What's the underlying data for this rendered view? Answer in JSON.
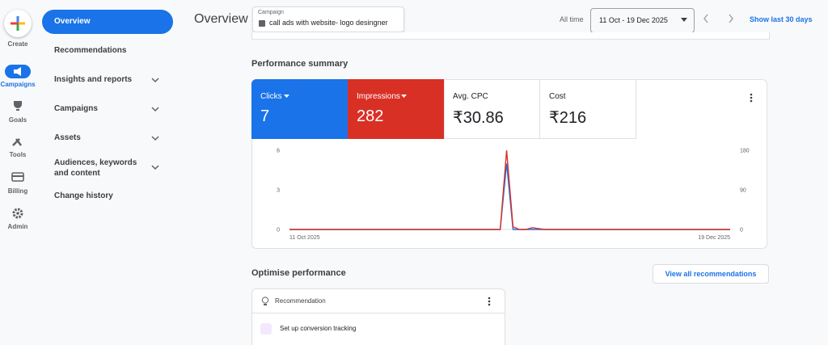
{
  "rail": {
    "create": "Create",
    "items": [
      "Campaigns",
      "Goals",
      "Tools",
      "Billing",
      "Admin"
    ]
  },
  "nav": {
    "items": [
      "Overview",
      "Recommendations",
      "Insights and reports",
      "Campaigns",
      "Assets",
      "Audiences, keywords and content",
      "Change history"
    ]
  },
  "header": {
    "title": "Overview",
    "campaign_label": "Campaign",
    "campaign_name": "call ads with website- logo desingner",
    "range_label": "All time",
    "date_range": "11 Oct - 19 Dec 2025",
    "show_last": "Show last 30 days"
  },
  "performance": {
    "title": "Performance summary",
    "tiles": [
      {
        "label": "Clicks",
        "value": "7"
      },
      {
        "label": "Impressions",
        "value": "282"
      },
      {
        "label": "Avg. CPC",
        "value": "₹30.86"
      },
      {
        "label": "Cost",
        "value": "₹216"
      }
    ]
  },
  "chart_data": {
    "type": "line",
    "categories": [
      "11 Oct 2025",
      null,
      null,
      null,
      null,
      null,
      null,
      null,
      null,
      null,
      null,
      null,
      null,
      null,
      null,
      null,
      null,
      null,
      null,
      null,
      null,
      null,
      null,
      null,
      null,
      null,
      null,
      null,
      null,
      null,
      null,
      null,
      null,
      null,
      null,
      null,
      null,
      null,
      null,
      null,
      null,
      null,
      null,
      null,
      null,
      null,
      null,
      null,
      null,
      null,
      null,
      null,
      null,
      null,
      null,
      null,
      null,
      null,
      null,
      null,
      null,
      null,
      null,
      null,
      null,
      null,
      null,
      null,
      null,
      "19 Dec 2025"
    ],
    "series": [
      {
        "color": "#1a73e8",
        "values": [
          0,
          0,
          0,
          0,
          0,
          0,
          0,
          0,
          0,
          0,
          0,
          0,
          0,
          0,
          0,
          0,
          0,
          0,
          0,
          0,
          0,
          0,
          0,
          0,
          0,
          0,
          0,
          0,
          0,
          0,
          0,
          0,
          0,
          0,
          5,
          0,
          0,
          0,
          0,
          0,
          0,
          0,
          0,
          0,
          0,
          0,
          0,
          0,
          0,
          0,
          0,
          0,
          0,
          0,
          0,
          0,
          0,
          0,
          0,
          0,
          0,
          0,
          0,
          0,
          0,
          0,
          0,
          0,
          0,
          0
        ]
      },
      {
        "color": "#d93025",
        "axis": "y2",
        "values": [
          0,
          0,
          0,
          0,
          0,
          0,
          0,
          0,
          0,
          0,
          0,
          0,
          0,
          0,
          0,
          0,
          0,
          0,
          0,
          0,
          0,
          0,
          0,
          0,
          0,
          0,
          0,
          0,
          0,
          0,
          0,
          0,
          0,
          0,
          180,
          6,
          0,
          0,
          4,
          2,
          0,
          0,
          0,
          0,
          0,
          0,
          0,
          0,
          0,
          0,
          0,
          0,
          0,
          0,
          0,
          0,
          0,
          0,
          0,
          0,
          0,
          0,
          0,
          0,
          0,
          0,
          0,
          0,
          0,
          0
        ]
      }
    ],
    "ylim": [
      0,
      6
    ],
    "yticks": [
      0,
      3,
      6
    ],
    "y2lim": [
      0,
      180
    ],
    "y2ticks": [
      0,
      90,
      180
    ]
  },
  "optimise": {
    "title": "Optimise performance",
    "button": "View all recommendations",
    "card_title": "Recommendation",
    "item": "Set up conversion tracking"
  }
}
